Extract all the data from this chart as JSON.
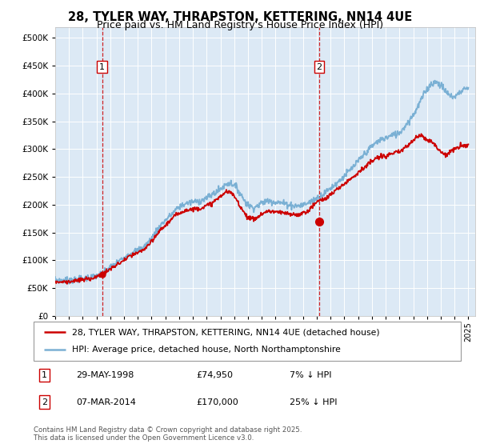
{
  "title1": "28, TYLER WAY, THRAPSTON, KETTERING, NN14 4UE",
  "title2": "Price paid vs. HM Land Registry's House Price Index (HPI)",
  "background_color": "#dce9f5",
  "ylim": [
    0,
    520000
  ],
  "yticks": [
    0,
    50000,
    100000,
    150000,
    200000,
    250000,
    300000,
    350000,
    400000,
    450000,
    500000
  ],
  "transaction1": {
    "date_num": 1998.41,
    "price": 74950
  },
  "transaction2": {
    "date_num": 2014.18,
    "price": 170000
  },
  "legend_line1": "28, TYLER WAY, THRAPSTON, KETTERING, NN14 4UE (detached house)",
  "legend_line2": "HPI: Average price, detached house, North Northamptonshire",
  "footnote1": "Contains HM Land Registry data © Crown copyright and database right 2025.",
  "footnote2": "This data is licensed under the Open Government Licence v3.0.",
  "red_color": "#cc0000",
  "blue_color": "#7ab0d4",
  "dashed_color": "#cc0000",
  "xmin": 1995,
  "xmax": 2025.5,
  "hpi_data": [
    [
      1995.0,
      65000
    ],
    [
      1995.5,
      64000
    ],
    [
      1996.0,
      64500
    ],
    [
      1996.5,
      65000
    ],
    [
      1997.0,
      67000
    ],
    [
      1997.5,
      69000
    ],
    [
      1998.0,
      72000
    ],
    [
      1998.5,
      78000
    ],
    [
      1999.0,
      87000
    ],
    [
      1999.5,
      96000
    ],
    [
      2000.0,
      105000
    ],
    [
      2000.5,
      113000
    ],
    [
      2001.0,
      118000
    ],
    [
      2001.5,
      126000
    ],
    [
      2002.0,
      140000
    ],
    [
      2002.5,
      158000
    ],
    [
      2003.0,
      172000
    ],
    [
      2003.5,
      184000
    ],
    [
      2004.0,
      196000
    ],
    [
      2004.5,
      202000
    ],
    [
      2005.0,
      205000
    ],
    [
      2005.5,
      207000
    ],
    [
      2006.0,
      212000
    ],
    [
      2006.5,
      220000
    ],
    [
      2007.0,
      228000
    ],
    [
      2007.5,
      238000
    ],
    [
      2008.0,
      235000
    ],
    [
      2008.5,
      218000
    ],
    [
      2009.0,
      200000
    ],
    [
      2009.5,
      196000
    ],
    [
      2010.0,
      203000
    ],
    [
      2010.5,
      207000
    ],
    [
      2011.0,
      205000
    ],
    [
      2011.5,
      203000
    ],
    [
      2012.0,
      200000
    ],
    [
      2012.5,
      198000
    ],
    [
      2013.0,
      200000
    ],
    [
      2013.5,
      205000
    ],
    [
      2014.0,
      212000
    ],
    [
      2014.5,
      220000
    ],
    [
      2015.0,
      230000
    ],
    [
      2015.5,
      240000
    ],
    [
      2016.0,
      252000
    ],
    [
      2016.5,
      264000
    ],
    [
      2017.0,
      278000
    ],
    [
      2017.5,
      292000
    ],
    [
      2018.0,
      305000
    ],
    [
      2018.5,
      315000
    ],
    [
      2019.0,
      320000
    ],
    [
      2019.5,
      325000
    ],
    [
      2020.0,
      330000
    ],
    [
      2020.5,
      345000
    ],
    [
      2021.0,
      362000
    ],
    [
      2021.5,
      385000
    ],
    [
      2022.0,
      408000
    ],
    [
      2022.5,
      420000
    ],
    [
      2023.0,
      415000
    ],
    [
      2023.5,
      400000
    ],
    [
      2024.0,
      395000
    ],
    [
      2024.5,
      405000
    ],
    [
      2025.0,
      408000
    ]
  ],
  "price_data": [
    [
      1995.0,
      62000
    ],
    [
      1995.5,
      61000
    ],
    [
      1996.0,
      62000
    ],
    [
      1996.5,
      63000
    ],
    [
      1997.0,
      65000
    ],
    [
      1997.5,
      67000
    ],
    [
      1998.0,
      70000
    ],
    [
      1998.5,
      76000
    ],
    [
      1999.0,
      84000
    ],
    [
      1999.5,
      92000
    ],
    [
      2000.0,
      100000
    ],
    [
      2000.5,
      108000
    ],
    [
      2001.0,
      113000
    ],
    [
      2001.5,
      121000
    ],
    [
      2002.0,
      133000
    ],
    [
      2002.5,
      150000
    ],
    [
      2003.0,
      163000
    ],
    [
      2003.5,
      175000
    ],
    [
      2004.0,
      185000
    ],
    [
      2004.5,
      190000
    ],
    [
      2005.0,
      192000
    ],
    [
      2005.5,
      194000
    ],
    [
      2006.0,
      198000
    ],
    [
      2006.5,
      205000
    ],
    [
      2007.0,
      215000
    ],
    [
      2007.5,
      223000
    ],
    [
      2008.0,
      215000
    ],
    [
      2008.5,
      195000
    ],
    [
      2009.0,
      178000
    ],
    [
      2009.5,
      175000
    ],
    [
      2010.0,
      183000
    ],
    [
      2010.5,
      188000
    ],
    [
      2011.0,
      187000
    ],
    [
      2011.5,
      185000
    ],
    [
      2012.0,
      183000
    ],
    [
      2012.5,
      182000
    ],
    [
      2013.0,
      185000
    ],
    [
      2013.5,
      192000
    ],
    [
      2014.0,
      205000
    ],
    [
      2014.5,
      210000
    ],
    [
      2015.0,
      218000
    ],
    [
      2015.5,
      228000
    ],
    [
      2016.0,
      238000
    ],
    [
      2016.5,
      248000
    ],
    [
      2017.0,
      258000
    ],
    [
      2017.5,
      268000
    ],
    [
      2018.0,
      278000
    ],
    [
      2018.5,
      285000
    ],
    [
      2019.0,
      288000
    ],
    [
      2019.5,
      292000
    ],
    [
      2020.0,
      295000
    ],
    [
      2020.5,
      305000
    ],
    [
      2021.0,
      315000
    ],
    [
      2021.5,
      325000
    ],
    [
      2022.0,
      318000
    ],
    [
      2022.5,
      310000
    ],
    [
      2023.0,
      295000
    ],
    [
      2023.5,
      292000
    ],
    [
      2024.0,
      300000
    ],
    [
      2024.5,
      305000
    ],
    [
      2025.0,
      308000
    ]
  ]
}
